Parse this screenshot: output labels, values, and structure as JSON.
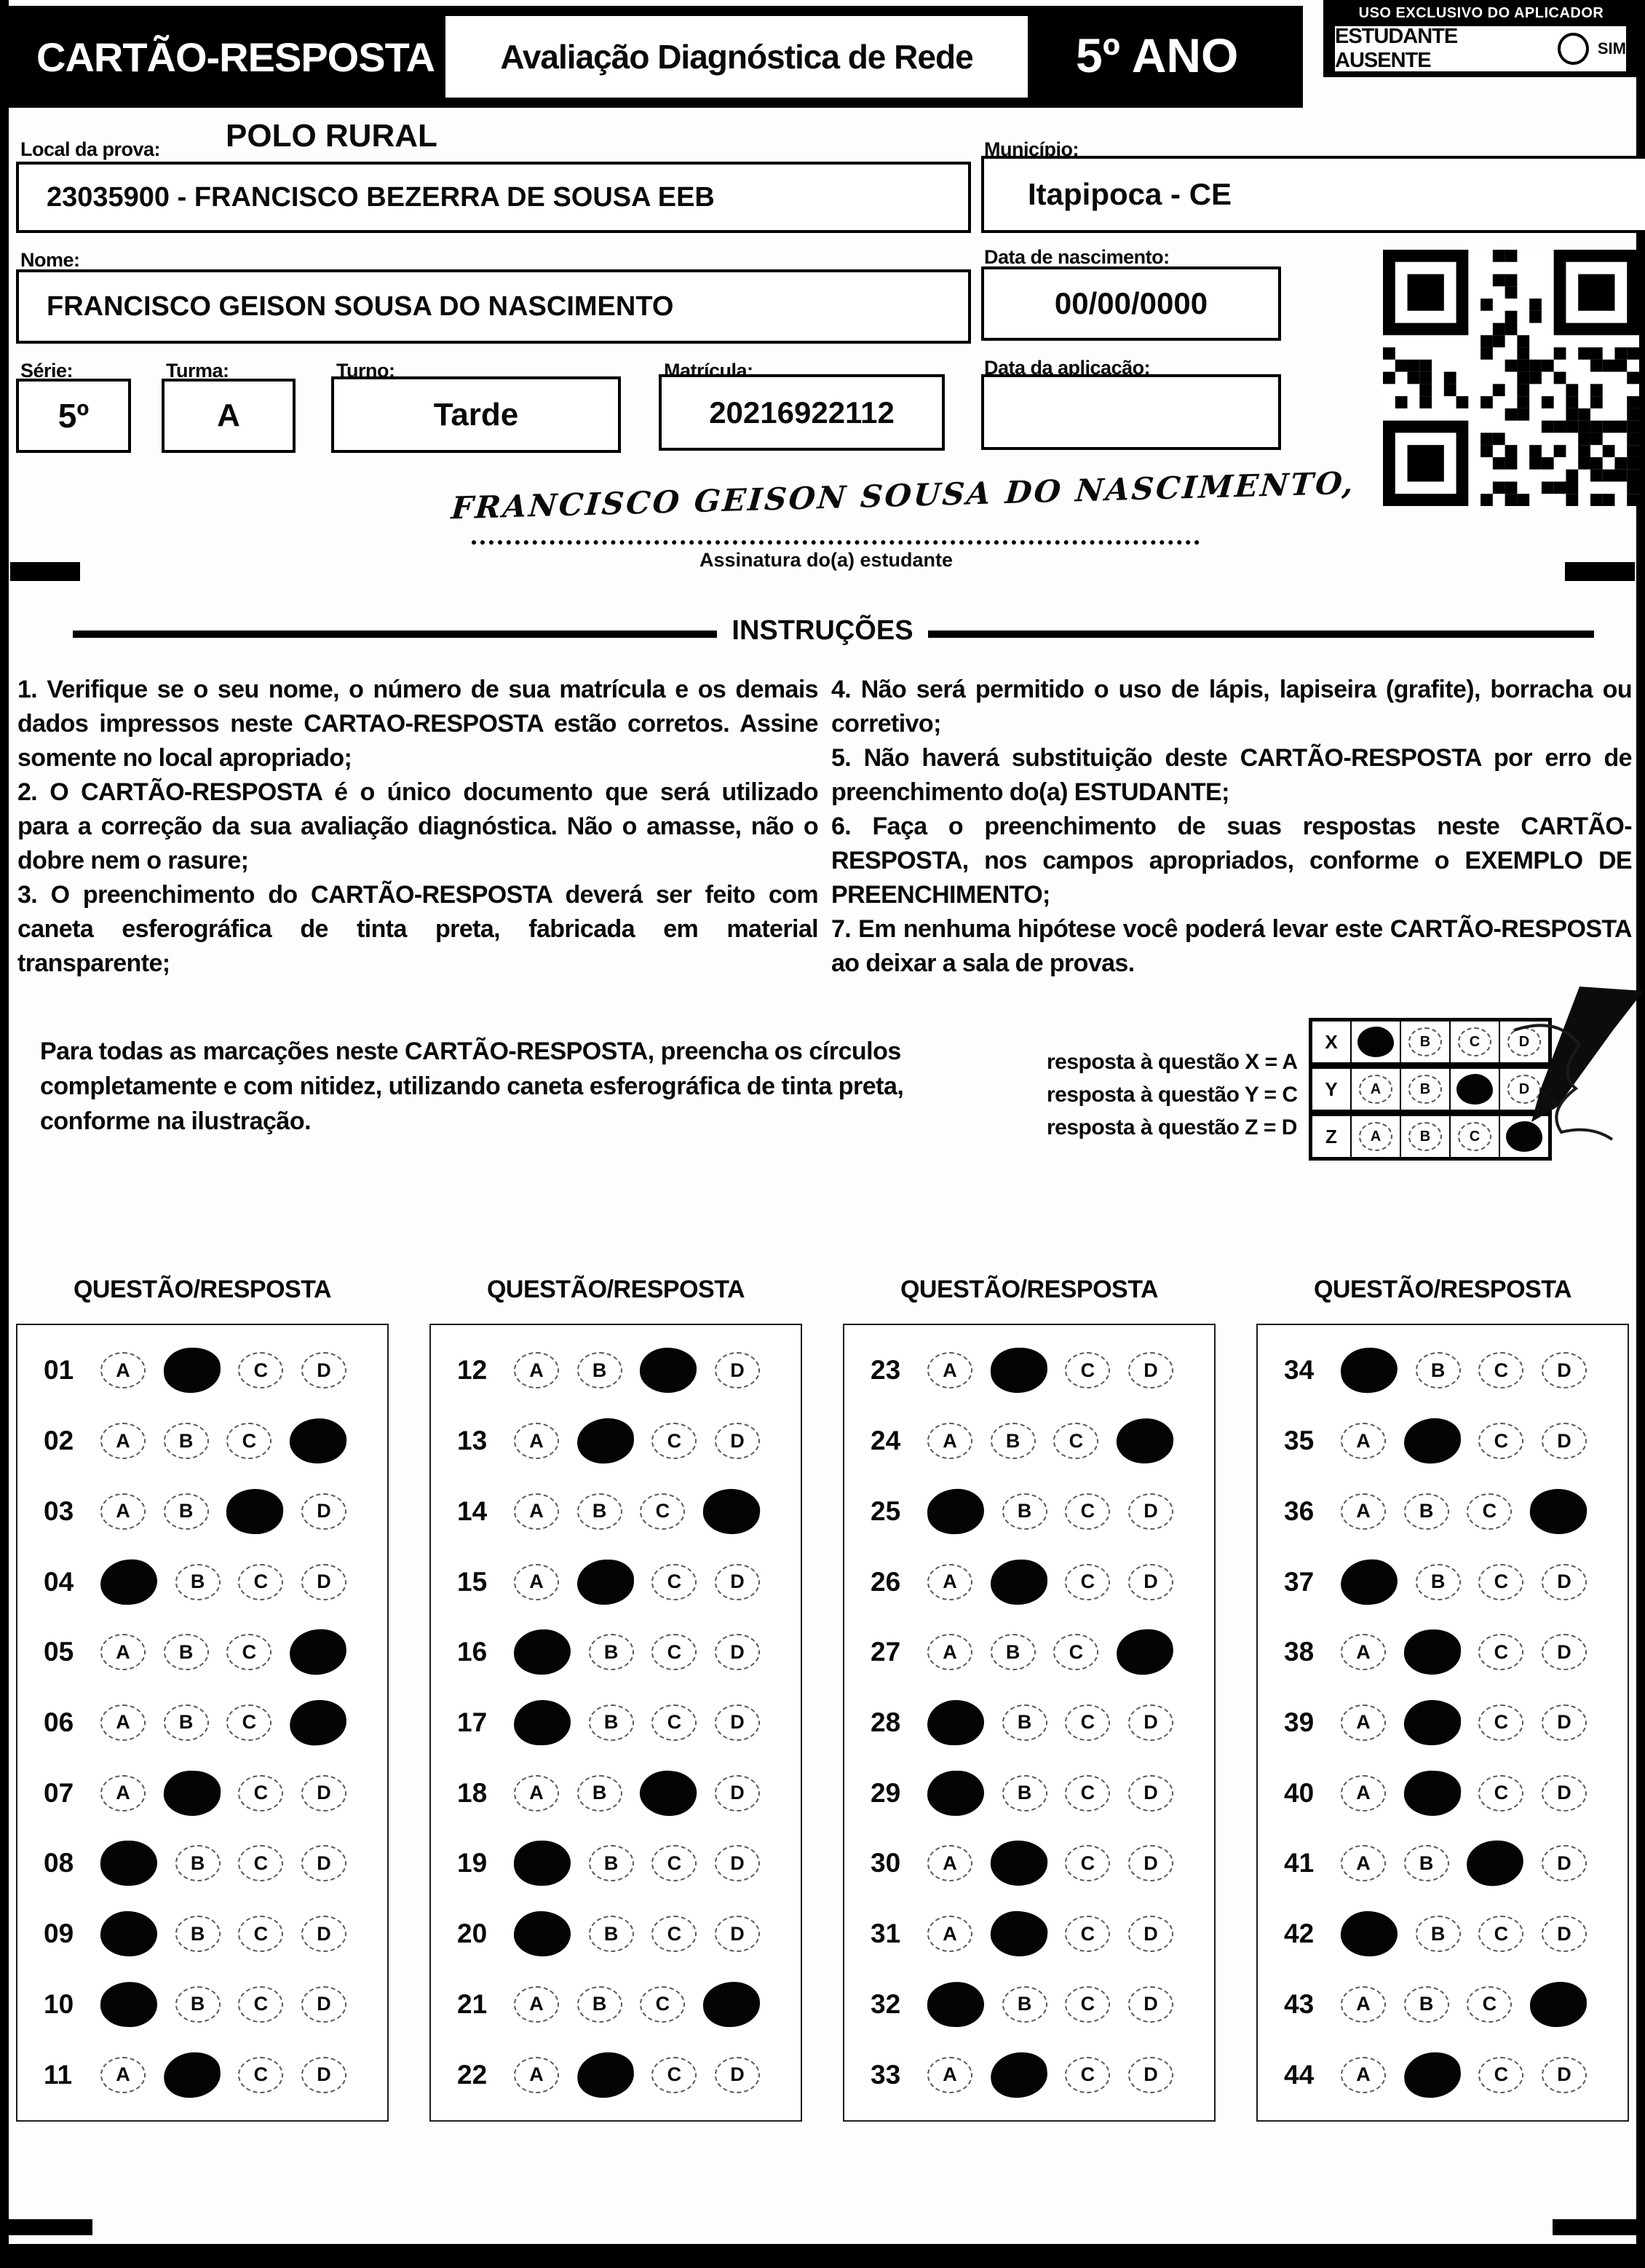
{
  "header": {
    "title": "CARTÃO-RESPOSTA",
    "subtitle": "Avaliação Diagnóstica de Rede",
    "grade": "5º ANO",
    "applicator": {
      "label": "USO EXCLUSIVO DO APLICADOR",
      "absent_label": "ESTUDANTE AUSENTE",
      "yes_label": "SIM"
    }
  },
  "form": {
    "local": {
      "label": "Local da prova:",
      "value": "POLO RURAL"
    },
    "school": {
      "value": "23035900 - FRANCISCO BEZERRA DE SOUSA EEB"
    },
    "municipio": {
      "label": "Município:",
      "value": "Itapipoca - CE"
    },
    "nome": {
      "label": "Nome:",
      "value": "FRANCISCO GEISON SOUSA DO NASCIMENTO"
    },
    "nascimento": {
      "label": "Data de nascimento:",
      "value": "00/00/0000"
    },
    "serie": {
      "label": "Série:",
      "value": "5º"
    },
    "turma": {
      "label": "Turma:",
      "value": "A"
    },
    "turno": {
      "label": "Turno:",
      "value": "Tarde"
    },
    "matricula": {
      "label": "Matrícula:",
      "value": "20216922112"
    },
    "aplicacao": {
      "label": "Data da aplicação:",
      "value": ""
    }
  },
  "signature": {
    "value": "FRANCISCO GEISON SOUSA DO NASCIMENTO,",
    "label": "Assinatura do(a) estudante"
  },
  "instructions": {
    "title": "INSTRUÇÕES",
    "left": [
      "1. Verifique se o seu nome, o número de sua matrícula e os demais dados impressos neste CARTAO-RESPOSTA estão corretos. Assine somente no local apropriado;",
      "2. O CARTÃO-RESPOSTA é o único documento que será utilizado para a correção da sua avaliação diagnóstica. Não o amasse, não o dobre nem o rasure;",
      "3. O preenchimento do CARTÃO-RESPOSTA deverá ser feito com caneta esferográfica de tinta preta, fabricada em material transparente;"
    ],
    "right": [
      "4. Não será permitido o uso de lápis, lapiseira (grafite), borracha ou corretivo;",
      "5. Não haverá substituição deste CARTÃO-RESPOSTA por erro de preenchimento do(a) ESTUDANTE;",
      "6. Faça o preenchimento de suas respostas neste CARTÃO-RESPOSTA, nos campos apropriados, conforme o EXEMPLO DE PREENCHIMENTO;",
      "7. Em nenhuma hipótese você poderá levar este CARTÃO-RESPOSTA ao deixar a sala de provas."
    ]
  },
  "example": {
    "text": "Para todas as marcações neste CARTÃO-RESPOSTA, preencha os círculos completamente e com nitidez, utilizando caneta esferográfica de tinta preta, conforme na ilustração.",
    "legend": [
      "resposta à questão X = A",
      "resposta à questão Y = C",
      "resposta à questão Z = D"
    ],
    "grid": {
      "options": [
        "A",
        "B",
        "C",
        "D"
      ],
      "rows": [
        {
          "label": "X",
          "marked": "A"
        },
        {
          "label": "Y",
          "marked": "C"
        },
        {
          "label": "Z",
          "marked": "D"
        }
      ]
    }
  },
  "answers": {
    "header": "QUESTÃO/RESPOSTA",
    "options": [
      "A",
      "B",
      "C",
      "D"
    ],
    "columns": [
      [
        {
          "num": "01",
          "marked": "B"
        },
        {
          "num": "02",
          "marked": "D"
        },
        {
          "num": "03",
          "marked": "C"
        },
        {
          "num": "04",
          "marked": "A"
        },
        {
          "num": "05",
          "marked": "D"
        },
        {
          "num": "06",
          "marked": "D"
        },
        {
          "num": "07",
          "marked": "B"
        },
        {
          "num": "08",
          "marked": "A"
        },
        {
          "num": "09",
          "marked": "A"
        },
        {
          "num": "10",
          "marked": "A"
        },
        {
          "num": "11",
          "marked": "B"
        }
      ],
      [
        {
          "num": "12",
          "marked": "C"
        },
        {
          "num": "13",
          "marked": "B"
        },
        {
          "num": "14",
          "marked": "D"
        },
        {
          "num": "15",
          "marked": "B"
        },
        {
          "num": "16",
          "marked": "A"
        },
        {
          "num": "17",
          "marked": "A"
        },
        {
          "num": "18",
          "marked": "C"
        },
        {
          "num": "19",
          "marked": "A"
        },
        {
          "num": "20",
          "marked": "A"
        },
        {
          "num": "21",
          "marked": "D"
        },
        {
          "num": "22",
          "marked": "B"
        }
      ],
      [
        {
          "num": "23",
          "marked": "B"
        },
        {
          "num": "24",
          "marked": "D"
        },
        {
          "num": "25",
          "marked": "A"
        },
        {
          "num": "26",
          "marked": "B"
        },
        {
          "num": "27",
          "marked": "D"
        },
        {
          "num": "28",
          "marked": "A"
        },
        {
          "num": "29",
          "marked": "A"
        },
        {
          "num": "30",
          "marked": "B"
        },
        {
          "num": "31",
          "marked": "B"
        },
        {
          "num": "32",
          "marked": "A"
        },
        {
          "num": "33",
          "marked": "B"
        }
      ],
      [
        {
          "num": "34",
          "marked": "A"
        },
        {
          "num": "35",
          "marked": "B"
        },
        {
          "num": "36",
          "marked": "D"
        },
        {
          "num": "37",
          "marked": "A"
        },
        {
          "num": "38",
          "marked": "B"
        },
        {
          "num": "39",
          "marked": "B"
        },
        {
          "num": "40",
          "marked": "B"
        },
        {
          "num": "41",
          "marked": "C"
        },
        {
          "num": "42",
          "marked": "A"
        },
        {
          "num": "43",
          "marked": "D"
        },
        {
          "num": "44",
          "marked": "B"
        }
      ]
    ]
  }
}
